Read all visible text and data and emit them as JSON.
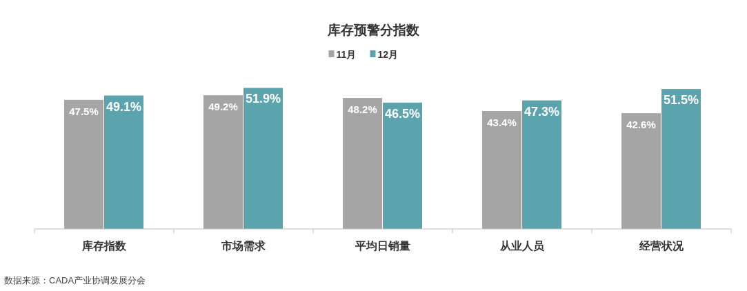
{
  "chart_data": {
    "type": "bar",
    "title": "库存预警分指数",
    "categories": [
      "库存指数",
      "市场需求",
      "平均日销量",
      "从业人员",
      "经营状况"
    ],
    "series": [
      {
        "name": "11月",
        "color": "#a5a5a5",
        "values": [
          47.5,
          49.2,
          48.2,
          43.4,
          42.6
        ],
        "value_labels": [
          "47.5%",
          "49.2%",
          "48.2%",
          "43.4%",
          "42.6%"
        ]
      },
      {
        "name": "12月",
        "color": "#5ba3ad",
        "values": [
          49.1,
          51.9,
          46.5,
          47.3,
          51.5
        ],
        "value_labels": [
          "49.1%",
          "51.9%",
          "46.5%",
          "47.3%",
          "51.5%"
        ]
      }
    ],
    "legend": "top",
    "grid": false,
    "annotations": [
      "数据来源：CADA产业协调发展分会"
    ]
  }
}
